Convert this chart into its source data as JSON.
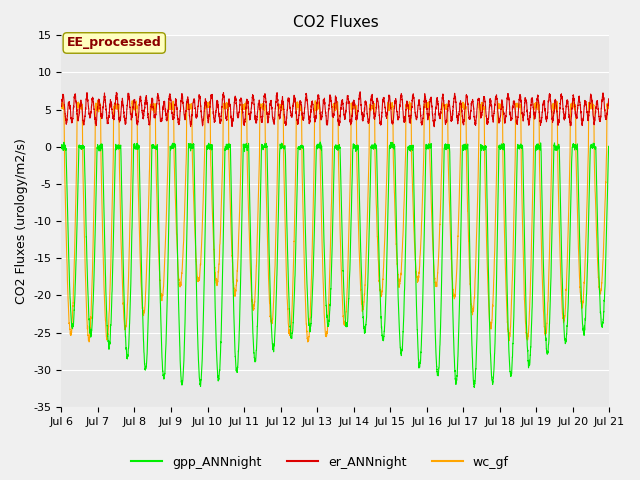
{
  "title": "CO2 Fluxes",
  "ylabel": "CO2 Fluxes (urology/m2/s)",
  "xlabel": "",
  "ylim": [
    -35,
    15
  ],
  "xlim": [
    6.0,
    21.0
  ],
  "annotation_text": "EE_processed",
  "annotation_color": "#8B0000",
  "annotation_bg": "#FFFFC0",
  "annotation_border": "#999900",
  "legend_labels": [
    "gpp_ANNnight",
    "er_ANNnight",
    "wc_gf"
  ],
  "line_colors": [
    "#00EE00",
    "#DD0000",
    "#FFA500"
  ],
  "bg_color": "#E8E8E8",
  "fig_bg": "#F0F0F0",
  "x_start": 6.0,
  "x_end": 21.0,
  "n_points": 7200,
  "title_fontsize": 11,
  "label_fontsize": 9,
  "tick_fontsize": 8,
  "legend_fontsize": 9,
  "figsize": [
    6.4,
    4.8
  ],
  "dpi": 100
}
